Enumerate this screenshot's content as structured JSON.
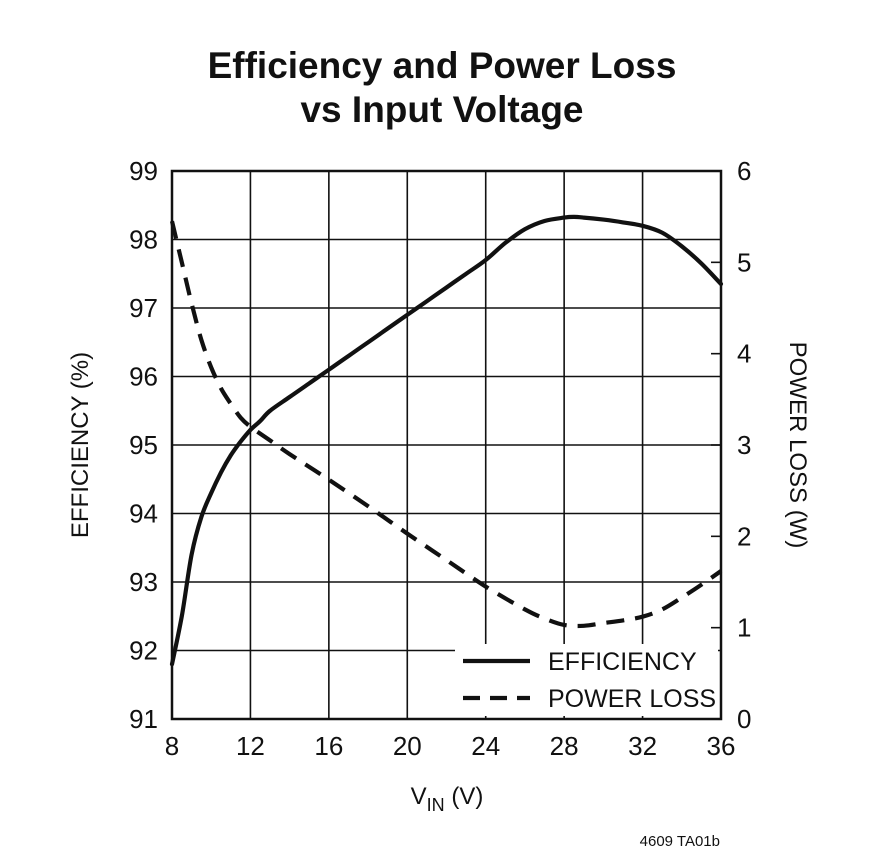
{
  "chart_data": {
    "type": "line",
    "title": [
      "Efficiency and Power Loss",
      "vs Input Voltage"
    ],
    "xlabel": {
      "main": "V",
      "sub": "IN",
      "unit": " (V)"
    },
    "ylabel_left": "EFFICIENCY (%)",
    "ylabel_right": "POWER LOSS (W)",
    "xlim": [
      8,
      36
    ],
    "ylim_left": [
      91,
      99
    ],
    "ylim_right": [
      0,
      6
    ],
    "x_ticks": [
      8,
      12,
      16,
      20,
      24,
      28,
      32,
      36
    ],
    "y_left_ticks": [
      91,
      92,
      93,
      94,
      95,
      96,
      97,
      98,
      99
    ],
    "y_right_ticks": [
      0,
      1,
      2,
      3,
      4,
      5,
      6
    ],
    "grid": true,
    "legend_position": "bottom-right",
    "series": [
      {
        "name": "EFFICIENCY",
        "axis": "left",
        "style": "solid",
        "x": [
          8,
          8.5,
          9,
          9.5,
          10,
          10.5,
          11,
          11.5,
          12,
          12.5,
          13,
          14,
          15,
          16,
          17,
          18,
          19,
          20,
          21,
          22,
          23,
          24,
          25,
          26,
          27,
          28,
          28.5,
          29,
          30,
          31,
          32,
          33,
          34,
          35,
          36
        ],
        "values": [
          91.8,
          92.5,
          93.4,
          93.95,
          94.3,
          94.6,
          94.85,
          95.05,
          95.22,
          95.35,
          95.5,
          95.7,
          95.9,
          96.1,
          96.3,
          96.5,
          96.7,
          96.9,
          97.1,
          97.3,
          97.5,
          97.7,
          97.95,
          98.15,
          98.27,
          98.32,
          98.33,
          98.32,
          98.29,
          98.25,
          98.2,
          98.1,
          97.9,
          97.65,
          97.35
        ]
      },
      {
        "name": "POWER LOSS",
        "axis": "right",
        "style": "dashed",
        "x": [
          8,
          8.5,
          9,
          9.5,
          10,
          10.5,
          11,
          11.5,
          12,
          13,
          14,
          16,
          18,
          20,
          22,
          24,
          26,
          27,
          28,
          29,
          30,
          31,
          32,
          33,
          34,
          35,
          36
        ],
        "values": [
          5.45,
          5.0,
          4.55,
          4.15,
          3.85,
          3.62,
          3.45,
          3.3,
          3.2,
          3.05,
          2.9,
          2.62,
          2.33,
          2.03,
          1.74,
          1.45,
          1.2,
          1.1,
          1.03,
          1.02,
          1.05,
          1.08,
          1.12,
          1.2,
          1.33,
          1.47,
          1.62
        ]
      }
    ]
  },
  "figure_code": "4609 TA01b"
}
